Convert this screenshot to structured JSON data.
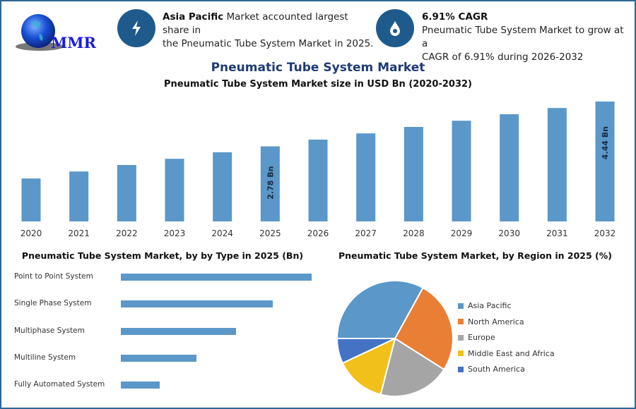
{
  "logo": {
    "text": "MMR"
  },
  "info_left": {
    "highlight": "Asia Pacific",
    "text_line1": " Market accounted largest share in",
    "text_line2": "the Pneumatic Tube System Market in 2025.",
    "icon": "lightning-icon"
  },
  "info_right": {
    "highlight": "6.91% CAGR",
    "text_line1": "Pneumatic Tube System Market to grow at a",
    "text_line2": "CAGR of 6.91% during 2026-2032",
    "icon": "drop-icon"
  },
  "colors": {
    "accent": "#1f5a8c",
    "bar": "#5b97c8",
    "title": "#1f3c73"
  },
  "chart_data": [
    {
      "type": "bar",
      "title": "Pneumatic Tube System Market",
      "subtitle": "Pneumatic Tube System Market size in USD Bn (2020-2032)",
      "categories": [
        "2020",
        "2021",
        "2022",
        "2023",
        "2024",
        "2025",
        "2026",
        "2027",
        "2028",
        "2029",
        "2030",
        "2031",
        "2032"
      ],
      "values": [
        1.59,
        1.85,
        2.09,
        2.32,
        2.56,
        2.78,
        3.03,
        3.26,
        3.5,
        3.73,
        3.97,
        4.2,
        4.44
      ],
      "data_labels": {
        "2025": "2.78 Bn",
        "2032": "4.44 Bn"
      },
      "ylim": [
        0,
        4.44
      ],
      "grid": false
    },
    {
      "type": "bar",
      "orientation": "horizontal",
      "title": "Pneumatic Tube System Market, by by Type in 2025 (Bn)",
      "categories": [
        "Point to Point System",
        "Single Phase System",
        "Multiphase System",
        "Multiline System",
        "Fully Automated System"
      ],
      "values": [
        0.93,
        0.74,
        0.56,
        0.37,
        0.19
      ],
      "grid": false
    },
    {
      "type": "pie",
      "title": "Pneumatic Tube System Market, by Region in 2025 (%)",
      "categories": [
        "Asia Pacific",
        "North America",
        "Europe",
        "Middle East and Africa",
        "South America"
      ],
      "values": [
        33,
        26,
        20,
        14,
        7
      ],
      "colors": [
        "#5b97c8",
        "#e97f35",
        "#a5a5a5",
        "#f2c01b",
        "#4472c4"
      ],
      "legend": "right"
    }
  ]
}
